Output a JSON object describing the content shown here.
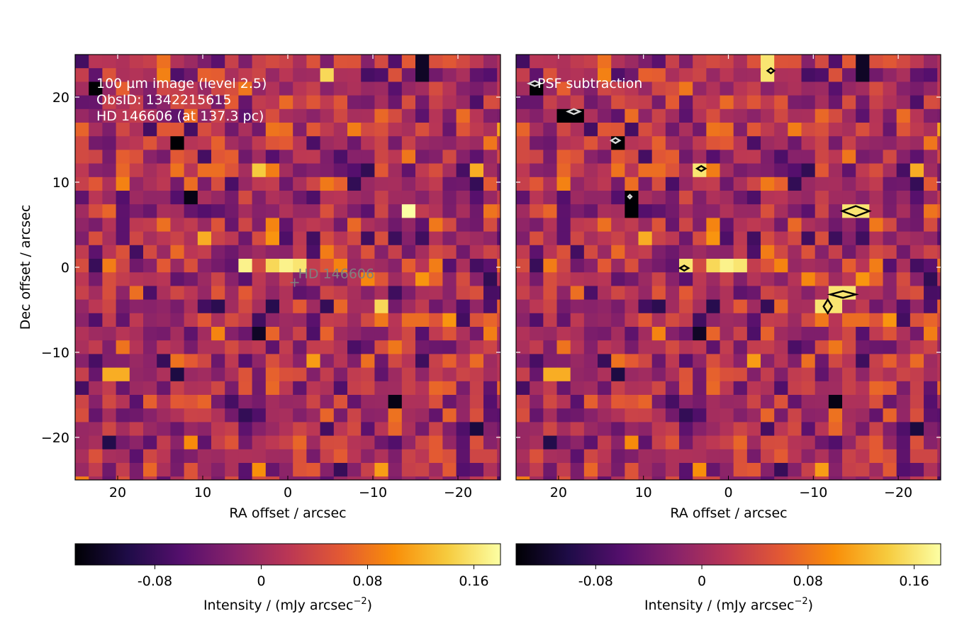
{
  "figure": {
    "x_label": "RA offset / arcsec",
    "y_label": "Dec offset / arcsec",
    "colorbar_label_main": "Intensity / (mJy arcsec",
    "colorbar_label_exp": "−2",
    "colorbar_label_close": ")"
  },
  "panels": {
    "left": {
      "annotation_lines": [
        "100 µm image (level 2.5)",
        "ObsID: 1342215615",
        "HD 146606 (at 137.3 pc)"
      ],
      "star_label": "HD 146606"
    },
    "right": {
      "annotation_lines": [
        "PSF subtraction"
      ]
    }
  },
  "chart_data": [
    {
      "type": "heatmap",
      "panel": "left",
      "title": "",
      "xlabel": "RA offset / arcsec",
      "ylabel": "Dec offset / arcsec",
      "xlim": [
        25,
        -25
      ],
      "ylim": [
        -25,
        25
      ],
      "x_ticks": [
        20,
        10,
        0,
        -10,
        -20
      ],
      "y_ticks": [
        -20,
        -10,
        0,
        10,
        20
      ],
      "pixel_size_arcsec": 1.6,
      "colormap": "inferno",
      "value_range": [
        -0.14,
        0.18
      ],
      "star_marker": {
        "x": -0.8,
        "y": -1.8,
        "label": "HD 146606"
      },
      "hot_pixels": [
        {
          "x": 5.0,
          "y": 0.0,
          "v": 0.17
        },
        {
          "x": 0.0,
          "y": 0.3,
          "v": 0.17
        },
        {
          "x": -1.6,
          "y": 0.3,
          "v": 0.16
        },
        {
          "x": 2.0,
          "y": 0.2,
          "v": 0.15
        },
        {
          "x": -14.5,
          "y": 6.5,
          "v": 0.18
        },
        {
          "x": -11.0,
          "y": -4.5,
          "v": 0.15
        },
        {
          "x": -5.0,
          "y": 22.5,
          "v": 0.15
        },
        {
          "x": 3.0,
          "y": 11.5,
          "v": 0.14
        },
        {
          "x": 9.5,
          "y": 3.5,
          "v": 0.12
        },
        {
          "x": 20.0,
          "y": -12.5,
          "v": 0.12
        },
        {
          "x": -11.0,
          "y": -24.0,
          "v": 0.11
        },
        {
          "x": -22.5,
          "y": 11.5,
          "v": 0.12
        }
      ],
      "cold_pixels": [
        {
          "x": 22.5,
          "y": 21.0,
          "v": -0.14
        },
        {
          "x": 12.8,
          "y": 14.8,
          "v": -0.14
        },
        {
          "x": 11.3,
          "y": 8.0,
          "v": -0.13
        },
        {
          "x": 3.0,
          "y": -7.5,
          "v": -0.12
        },
        {
          "x": -12.5,
          "y": -15.5,
          "v": -0.13
        },
        {
          "x": -16.0,
          "y": 23.0,
          "v": -0.12
        }
      ]
    },
    {
      "type": "heatmap",
      "panel": "right",
      "title": "",
      "xlabel": "RA offset / arcsec",
      "ylabel": "",
      "xlim": [
        25,
        -25
      ],
      "ylim": [
        -25,
        25
      ],
      "x_ticks": [
        20,
        10,
        0,
        -10,
        -20
      ],
      "pixel_size_arcsec": 1.6,
      "colormap": "inferno",
      "value_range": [
        -0.14,
        0.18
      ],
      "positive_contours": [
        {
          "x": -15.0,
          "y": 6.6,
          "rx": 1.6,
          "ry": 0.6
        },
        {
          "x": -13.5,
          "y": -3.2,
          "rx": 1.5,
          "ry": 0.4
        },
        {
          "x": -11.7,
          "y": -4.6,
          "rx": 0.5,
          "ry": 0.8
        },
        {
          "x": 3.2,
          "y": 11.6,
          "rx": 0.5,
          "ry": 0.3
        },
        {
          "x": 5.2,
          "y": -0.1,
          "rx": 0.5,
          "ry": 0.3
        },
        {
          "x": -5.0,
          "y": 23.1,
          "rx": 0.4,
          "ry": 0.3
        }
      ],
      "negative_contours": [
        {
          "x": 22.8,
          "y": 21.6,
          "rx": 0.7,
          "ry": 0.3
        },
        {
          "x": 18.2,
          "y": 18.3,
          "rx": 0.7,
          "ry": 0.3
        },
        {
          "x": 13.3,
          "y": 14.9,
          "rx": 0.5,
          "ry": 0.3
        },
        {
          "x": 11.6,
          "y": 8.3,
          "rx": 0.2,
          "ry": 0.2
        }
      ]
    }
  ],
  "colorbar": {
    "ticks": [
      -0.08,
      0,
      0.08,
      0.16
    ],
    "tick_labels": [
      "-0.08",
      "0",
      "0.08",
      "0.16"
    ],
    "range": [
      -0.14,
      0.18
    ]
  }
}
